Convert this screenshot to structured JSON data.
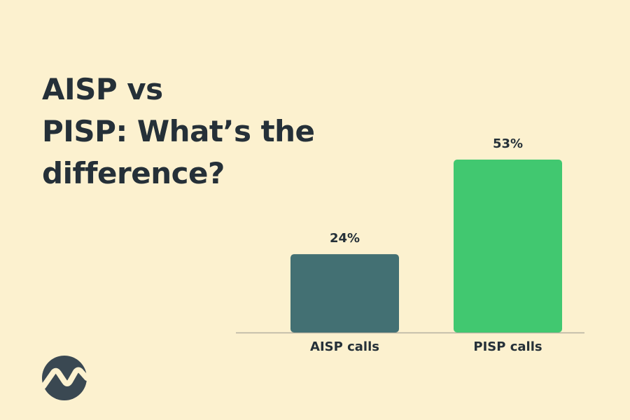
{
  "chart_data": {
    "type": "bar",
    "title": "AISP vs\nPISP: What’s the\ndifference?",
    "categories": [
      "AISP calls",
      "PISP calls"
    ],
    "values": [
      24,
      53
    ],
    "value_labels": [
      "24%",
      "53%"
    ],
    "colors": [
      "#437073",
      "#41c870"
    ]
  }
}
